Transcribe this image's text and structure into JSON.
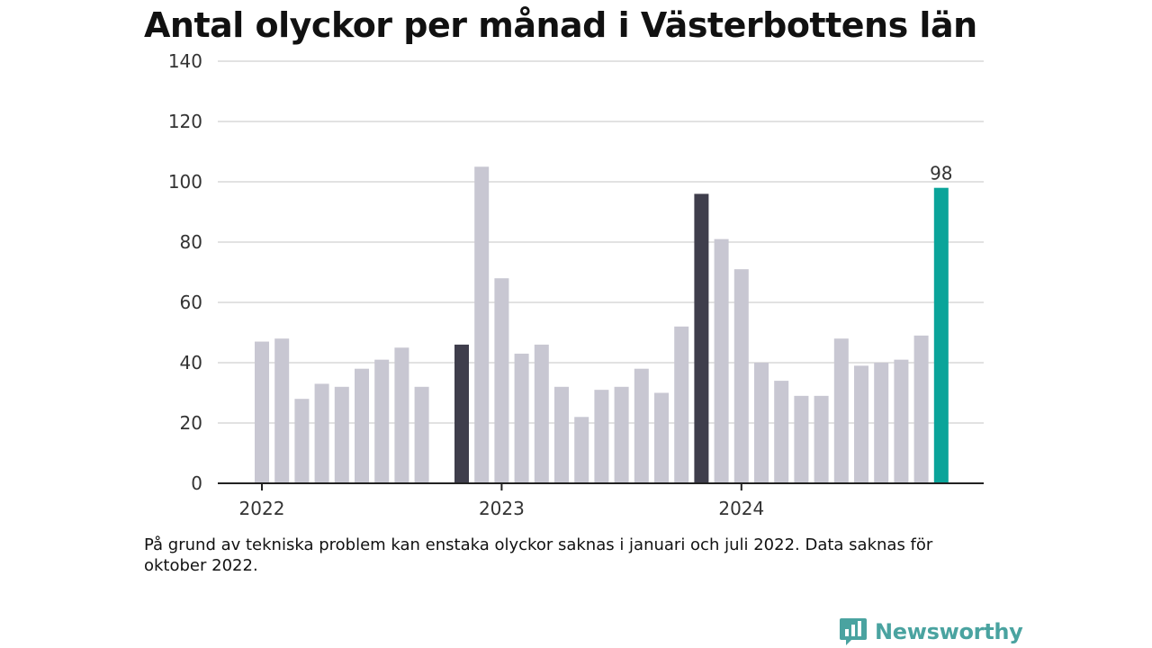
{
  "header": {
    "title": "Antal olyckor per månad i Västerbottens län"
  },
  "footer": {
    "note": "På grund av tekniska problem kan enstaka olyckor saknas i januari och juli 2022. Data saknas för oktober 2022.",
    "brand": "Newsworthy",
    "brand_icon": "bar-chart-speech-bubble-icon"
  },
  "colors": {
    "normal": "#c8c7d2",
    "january": "#3f3e4c",
    "latest": "#0aa49a",
    "grid": "#d9d9d9",
    "axis": "#222222",
    "brand": "#4aa3a0"
  },
  "chart_data": {
    "type": "bar",
    "title": "Antal olyckor per månad i Västerbottens län",
    "xlabel": "",
    "ylabel": "",
    "ylim": [
      0,
      140
    ],
    "yticks": [
      0,
      20,
      40,
      60,
      80,
      100,
      120,
      140
    ],
    "x_tick_labels": [
      {
        "label": "2022",
        "month": "2022-01"
      },
      {
        "label": "2023",
        "month": "2023-01"
      },
      {
        "label": "2024",
        "month": "2024-01"
      }
    ],
    "grid": true,
    "legend": "none",
    "months": [
      "2022-01",
      "2022-02",
      "2022-03",
      "2022-04",
      "2022-05",
      "2022-06",
      "2022-07",
      "2022-08",
      "2022-09",
      "2022-10",
      "2022-11",
      "2022-12",
      "2023-01",
      "2023-02",
      "2023-03",
      "2023-04",
      "2023-05",
      "2023-06",
      "2023-07",
      "2023-08",
      "2023-09",
      "2023-10",
      "2023-11",
      "2023-12",
      "2024-01",
      "2024-02",
      "2024-03",
      "2024-04",
      "2024-05",
      "2024-06",
      "2024-07",
      "2024-08",
      "2024-09",
      "2024-10",
      "2024-11",
      "2024-12"
    ],
    "values": [
      47,
      48,
      28,
      33,
      32,
      38,
      41,
      45,
      32,
      null,
      46,
      105,
      68,
      43,
      46,
      32,
      22,
      31,
      32,
      38,
      30,
      52,
      96,
      81,
      71,
      40,
      34,
      29,
      29,
      48,
      39,
      40,
      41,
      49,
      98,
      null
    ],
    "highlight_dark": [
      "2022-11",
      "2023-11"
    ],
    "highlight_latest": "2024-11",
    "data_labels": [
      {
        "month": "2024-11",
        "text": "98"
      }
    ]
  }
}
